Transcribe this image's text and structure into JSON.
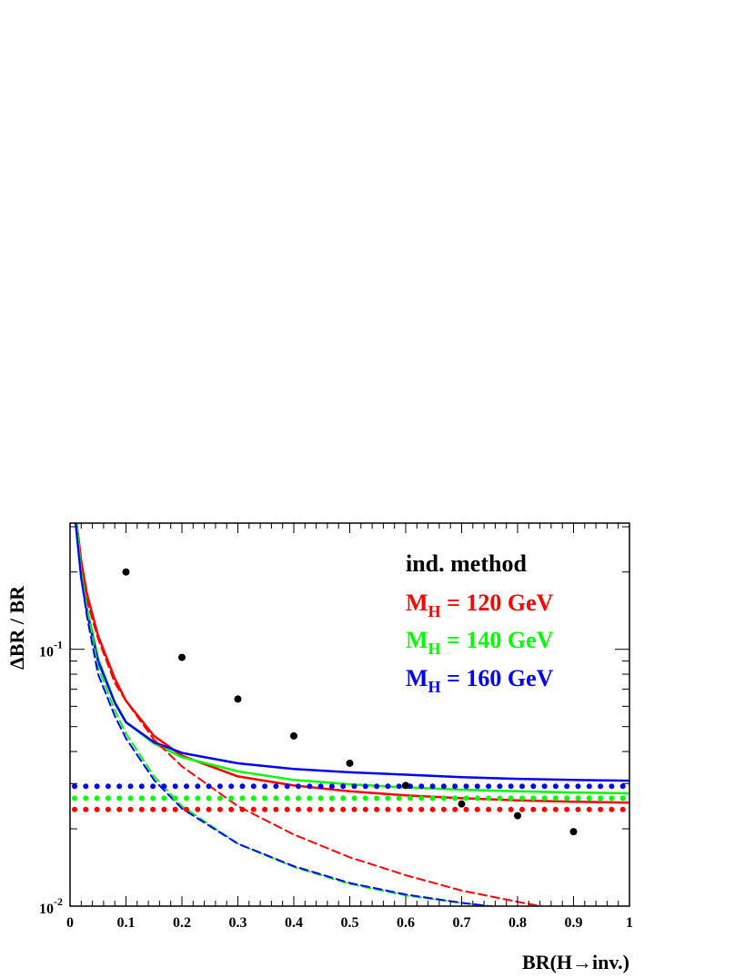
{
  "chart_data": {
    "type": "line",
    "ylabel": "ΔBR / BR",
    "xlabel": "BR(H→inv.)",
    "xlim": [
      0,
      1
    ],
    "ylim": [
      0.01,
      0.31
    ],
    "yscale": "log",
    "grid": false,
    "legend_position": "top-right",
    "x_ticks": [
      "0",
      "0.1",
      "0.2",
      "0.3",
      "0.4",
      "0.5",
      "0.6",
      "0.7",
      "0.8",
      "0.9",
      "1"
    ],
    "y_ticks": [
      {
        "value": 0.1,
        "mantissa": "10",
        "exponent": "-1"
      },
      {
        "value": 0.01,
        "mantissa": "10",
        "exponent": "-2"
      }
    ],
    "legend": {
      "heading": "ind. method",
      "entries": [
        {
          "prefix": "M",
          "subscript": "H",
          "text": " = 120 GeV",
          "color": "#ff0000"
        },
        {
          "prefix": "M",
          "subscript": "H",
          "text": " = 140 GeV",
          "color": "#00ff00"
        },
        {
          "prefix": "M",
          "subscript": "H",
          "text": " = 160 GeV",
          "color": "#0000ff"
        }
      ]
    },
    "markers": {
      "color": "#000000",
      "x": [
        0.1,
        0.2,
        0.3,
        0.4,
        0.5,
        0.6,
        0.7,
        0.8,
        0.9
      ],
      "y": [
        0.2,
        0.093,
        0.064,
        0.046,
        0.036,
        0.0295,
        0.025,
        0.0225,
        0.0195
      ]
    },
    "series": [
      {
        "color": "#ff0000",
        "style": "solid",
        "x": [
          0.012,
          0.02,
          0.03,
          0.05,
          0.08,
          0.1,
          0.15,
          0.2,
          0.3,
          0.4,
          0.5,
          0.6,
          0.7,
          0.8,
          0.9,
          1.0
        ],
        "y": [
          0.31,
          0.22,
          0.165,
          0.113,
          0.077,
          0.063,
          0.046,
          0.0385,
          0.032,
          0.0295,
          0.028,
          0.027,
          0.0263,
          0.0258,
          0.0255,
          0.0253
        ]
      },
      {
        "color": "#00ff00",
        "style": "solid",
        "x": [
          0.012,
          0.02,
          0.03,
          0.05,
          0.08,
          0.1,
          0.15,
          0.2,
          0.3,
          0.4,
          0.5,
          0.6,
          0.7,
          0.8,
          0.9,
          1.0
        ],
        "y": [
          0.31,
          0.2,
          0.145,
          0.092,
          0.062,
          0.052,
          0.043,
          0.038,
          0.0335,
          0.031,
          0.0298,
          0.029,
          0.0284,
          0.028,
          0.0277,
          0.0275
        ]
      },
      {
        "color": "#0000ff",
        "style": "solid",
        "x": [
          0.01,
          0.02,
          0.03,
          0.05,
          0.08,
          0.1,
          0.15,
          0.2,
          0.3,
          0.4,
          0.5,
          0.6,
          0.7,
          0.8,
          0.9,
          1.0
        ],
        "y": [
          0.31,
          0.19,
          0.14,
          0.09,
          0.062,
          0.052,
          0.0435,
          0.0395,
          0.036,
          0.0342,
          0.0332,
          0.0325,
          0.0318,
          0.0313,
          0.031,
          0.0308
        ]
      },
      {
        "color": "#ff0000",
        "style": "dashed",
        "x": [
          0.012,
          0.02,
          0.03,
          0.05,
          0.08,
          0.1,
          0.15,
          0.2,
          0.3,
          0.4,
          0.5,
          0.6,
          0.7,
          0.8,
          0.85,
          0.9
        ],
        "y": [
          0.31,
          0.21,
          0.155,
          0.11,
          0.074,
          0.063,
          0.0445,
          0.035,
          0.0245,
          0.019,
          0.0155,
          0.0132,
          0.0115,
          0.0104,
          0.0099,
          0.0095
        ]
      },
      {
        "color": "#00ff00",
        "style": "dashed",
        "x": [
          0.012,
          0.02,
          0.03,
          0.05,
          0.08,
          0.1,
          0.15,
          0.2,
          0.3,
          0.4,
          0.5,
          0.6,
          0.7,
          0.8
        ],
        "y": [
          0.31,
          0.2,
          0.145,
          0.085,
          0.058,
          0.047,
          0.032,
          0.0245,
          0.0175,
          0.0142,
          0.0122,
          0.011,
          0.0103,
          0.0097
        ]
      },
      {
        "color": "#0000ff",
        "style": "dashed",
        "x": [
          0.01,
          0.02,
          0.03,
          0.05,
          0.08,
          0.1,
          0.15,
          0.2,
          0.3,
          0.4,
          0.5,
          0.6,
          0.7,
          0.8
        ],
        "y": [
          0.31,
          0.19,
          0.135,
          0.08,
          0.055,
          0.045,
          0.031,
          0.024,
          0.0175,
          0.0143,
          0.0123,
          0.0111,
          0.0103,
          0.0097
        ]
      },
      {
        "color": "#ff0000",
        "style": "dotted",
        "x": [
          0,
          1
        ],
        "y": [
          0.0238,
          0.0238
        ]
      },
      {
        "color": "#00ff00",
        "style": "dotted",
        "x": [
          0,
          1
        ],
        "y": [
          0.0263,
          0.0263
        ]
      },
      {
        "color": "#0000ff",
        "style": "dotted",
        "x": [
          0,
          1
        ],
        "y": [
          0.0293,
          0.0293
        ]
      }
    ]
  }
}
